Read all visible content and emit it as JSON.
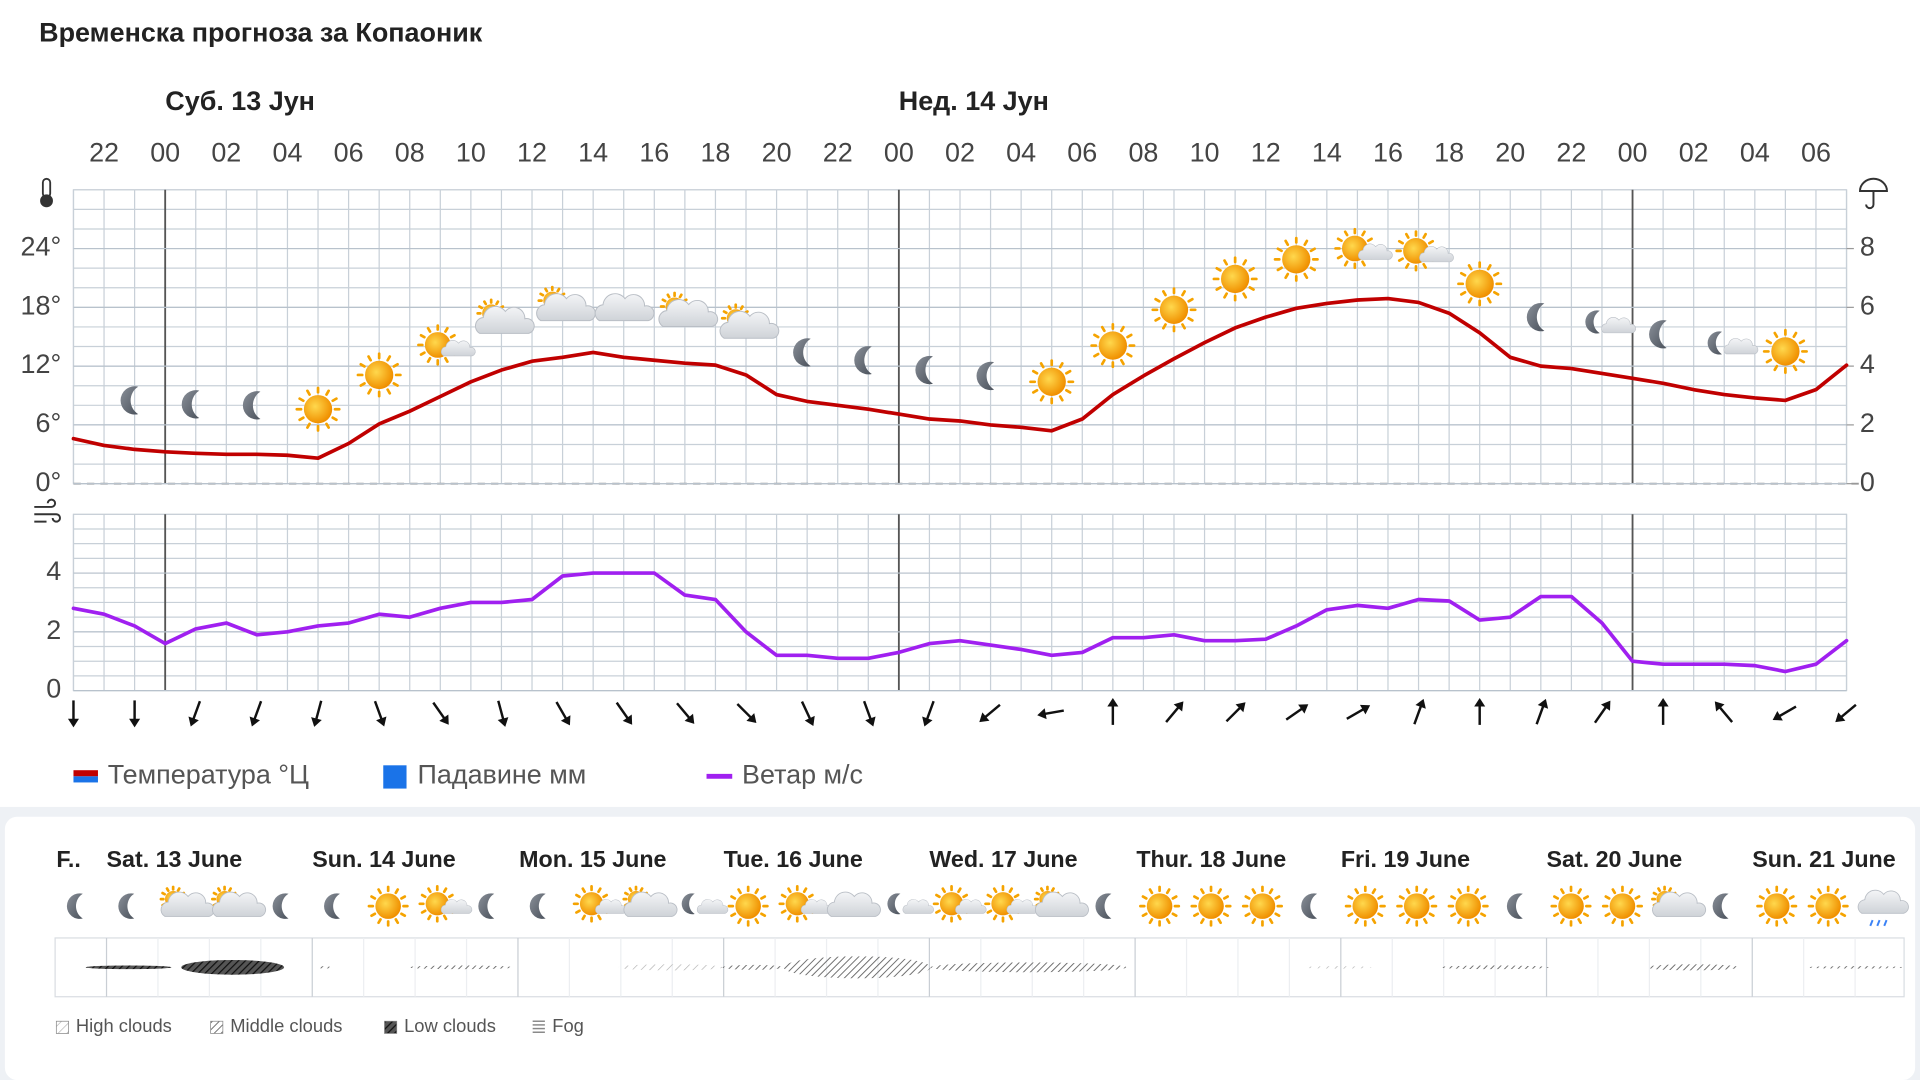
{
  "chart_data": [
    {
      "type": "line",
      "title": "Временска прогноза за Копаоник",
      "annotations": [
        "Суб. 13 Јун",
        "Нед. 14 Јун"
      ],
      "categories": [
        null,
        "22",
        null,
        "00",
        null,
        "02",
        null,
        "04",
        null,
        "06",
        null,
        "08",
        null,
        "10",
        null,
        "12",
        null,
        "14",
        null,
        "16",
        null,
        "18",
        null,
        "20",
        null,
        "22",
        null,
        "00",
        null,
        "02",
        null,
        "04",
        null,
        "06",
        null,
        "08",
        null,
        "10",
        null,
        "12",
        null,
        "14",
        null,
        "16",
        null,
        "18",
        null,
        "20",
        null,
        "22",
        null,
        "00",
        null,
        "02",
        null,
        "04",
        null,
        "06",
        null
      ],
      "series": [
        {
          "name": "Температура °Ц",
          "color": "#c00000",
          "values": [
            4.6,
            3.9,
            3.5,
            3.25,
            3.1,
            3.0,
            3.0,
            2.9,
            2.6,
            4.1,
            6.1,
            7.4,
            8.9,
            10.4,
            11.6,
            12.5,
            12.9,
            13.4,
            12.9,
            12.6,
            12.3,
            12.1,
            11.1,
            9.1,
            8.4,
            8.0,
            7.6,
            7.1,
            6.6,
            6.4,
            6.0,
            5.75,
            5.4,
            6.6,
            9.1,
            11.0,
            12.75,
            14.4,
            15.9,
            17.0,
            17.9,
            18.4,
            18.75,
            18.9,
            18.5,
            17.4,
            15.4,
            12.9,
            12.0,
            11.75,
            11.25,
            10.75,
            10.25,
            9.6,
            9.1,
            8.75,
            8.5,
            9.6,
            12.1
          ]
        },
        {
          "name": "Падавине мм",
          "color": "#1a73e8",
          "axis": "y2",
          "values": [
            0,
            0,
            0,
            0,
            0,
            0,
            0,
            0,
            0,
            0,
            0,
            0,
            0,
            0,
            0,
            0,
            0,
            0,
            0,
            0,
            0,
            0,
            0,
            0,
            0,
            0,
            0,
            0,
            0,
            0,
            0,
            0,
            0,
            0,
            0,
            0,
            0,
            0,
            0,
            0,
            0,
            0,
            0,
            0,
            0,
            0,
            0,
            0,
            0,
            0,
            0,
            0,
            0,
            0,
            0,
            0,
            0,
            0,
            0
          ]
        }
      ],
      "ylim": [
        0,
        30
      ],
      "yticks": [
        {
          "value": 0,
          "label": "0°"
        },
        {
          "value": 6,
          "label": "6°"
        },
        {
          "value": 12,
          "label": "12°"
        },
        {
          "value": 18,
          "label": "18°"
        },
        {
          "value": 24,
          "label": "24°"
        }
      ],
      "y2lim": [
        0,
        10
      ],
      "y2ticks": [
        0,
        2,
        4,
        6,
        8
      ],
      "grid": true
    },
    {
      "type": "line",
      "series": [
        {
          "name": "Ветар м/с",
          "color": "#a020f0",
          "values": [
            2.8,
            2.6,
            2.2,
            1.6,
            2.1,
            2.3,
            1.9,
            2.0,
            2.2,
            2.3,
            2.6,
            2.5,
            2.8,
            3.0,
            3.0,
            3.1,
            3.9,
            4.0,
            4.0,
            4.0,
            3.25,
            3.1,
            2.0,
            1.2,
            1.2,
            1.1,
            1.1,
            1.3,
            1.6,
            1.7,
            1.55,
            1.4,
            1.2,
            1.3,
            1.8,
            1.8,
            1.9,
            1.7,
            1.7,
            1.75,
            2.2,
            2.75,
            2.9,
            2.8,
            3.1,
            3.05,
            2.4,
            2.5,
            3.2,
            3.2,
            2.3,
            1.0,
            0.9,
            0.9,
            0.9,
            0.85,
            0.65,
            0.9,
            1.7
          ]
        }
      ],
      "wind_direction": [
        0,
        0,
        20,
        20,
        15,
        340,
        325,
        345,
        330,
        325,
        320,
        315,
        335,
        340,
        20,
        50,
        80,
        180,
        220,
        225,
        235,
        240,
        200,
        180,
        200,
        215,
        180,
        140,
        60,
        50
      ],
      "ylim": [
        0,
        6
      ],
      "yticks": [
        0,
        2,
        4
      ],
      "grid": true
    }
  ],
  "overview": {
    "days": [
      "F..",
      "Sat. 13 June",
      "Sun. 14 June",
      "Mon. 15 June",
      "Tue. 16 June",
      "Wed. 17 June",
      "Thur. 18 June",
      "Fri. 19 June",
      "Sat. 20 June",
      "Sun. 21 June"
    ],
    "cloud_legend": [
      "High clouds",
      "Middle clouds",
      "Low clouds",
      "Fog"
    ]
  }
}
